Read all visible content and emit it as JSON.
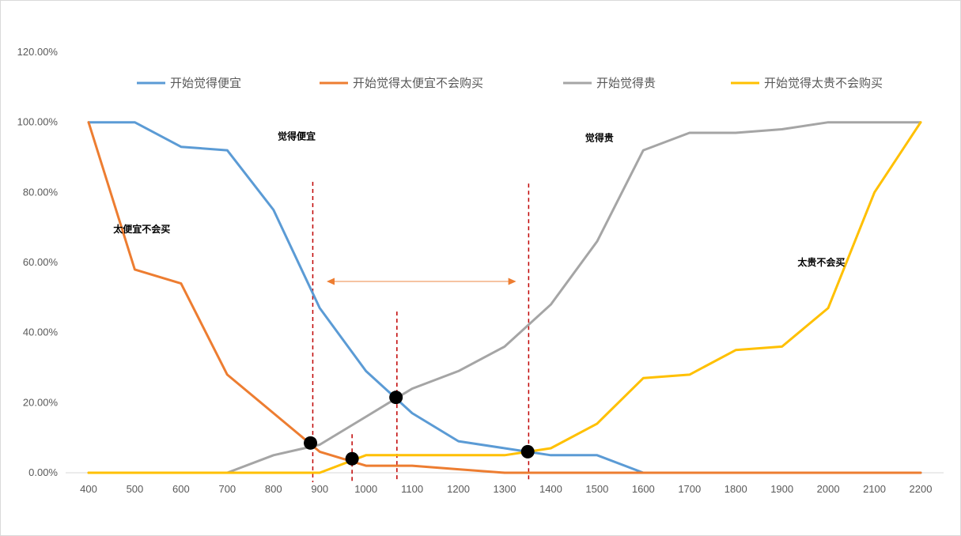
{
  "chart_data": {
    "type": "line",
    "x": [
      400,
      500,
      600,
      700,
      800,
      900,
      1000,
      1100,
      1200,
      1300,
      1400,
      1500,
      1600,
      1700,
      1800,
      1900,
      2000,
      2100,
      2200
    ],
    "x_tick_labels": [
      "400",
      "500",
      "600",
      "700",
      "800",
      "900",
      "1000",
      "1100",
      "1200",
      "1300",
      "1400",
      "1500",
      "1600",
      "1700",
      "1800",
      "1900",
      "2000",
      "2100",
      "2200"
    ],
    "ylim": [
      0,
      1.2
    ],
    "y_ticks": [
      0,
      0.2,
      0.4,
      0.6,
      0.8,
      1.0,
      1.2
    ],
    "y_tick_labels": [
      "0.00%",
      "20.00%",
      "40.00%",
      "60.00%",
      "80.00%",
      "100.00%",
      "120.00%"
    ],
    "grid": false,
    "legend_position": "top",
    "series": [
      {
        "name": "开始觉得便宜",
        "color": "#5B9BD5",
        "values": [
          1.0,
          1.0,
          0.93,
          0.92,
          0.75,
          0.47,
          0.29,
          0.17,
          0.09,
          0.07,
          0.05,
          0.05,
          0.0,
          0.0,
          0.0,
          0.0,
          0.0,
          0.0,
          0.0
        ]
      },
      {
        "name": "开始觉得太便宜不会购买",
        "color": "#ED7D31",
        "values": [
          1.0,
          0.58,
          0.54,
          0.28,
          0.17,
          0.06,
          0.02,
          0.02,
          0.01,
          0.0,
          0.0,
          0.0,
          0.0,
          0.0,
          0.0,
          0.0,
          0.0,
          0.0,
          0.0
        ]
      },
      {
        "name": "开始觉得贵",
        "color": "#A5A5A5",
        "values": [
          0.0,
          0.0,
          0.0,
          0.0,
          0.05,
          0.08,
          0.16,
          0.24,
          0.29,
          0.36,
          0.48,
          0.66,
          0.92,
          0.97,
          0.97,
          0.98,
          1.0,
          1.0,
          1.0
        ]
      },
      {
        "name": "开始觉得太贵不会购买",
        "color": "#FFC000",
        "values": [
          0.0,
          0.0,
          0.0,
          0.0,
          0.0,
          0.0,
          0.05,
          0.05,
          0.05,
          0.05,
          0.07,
          0.14,
          0.27,
          0.28,
          0.35,
          0.36,
          0.47,
          0.8,
          1.0
        ]
      }
    ],
    "annotations": [
      {
        "text": "觉得便宜",
        "x": 850,
        "y": 0.96
      },
      {
        "text": "觉得贵",
        "x": 1505,
        "y": 0.955
      },
      {
        "text": "太便宜不会买",
        "x": 515,
        "y": 0.695
      },
      {
        "text": "太贵不会买",
        "x": 1985,
        "y": 0.6
      }
    ],
    "intersection_points": [
      {
        "x": 880,
        "y": 0.085
      },
      {
        "x": 970,
        "y": 0.04
      },
      {
        "x": 1065,
        "y": 0.215
      },
      {
        "x": 1350,
        "y": 0.06
      }
    ],
    "reference_lines": [
      {
        "x": 885,
        "y_top": 0.83
      },
      {
        "x": 970,
        "y_top": 0.11
      },
      {
        "x": 1067,
        "y_top": 0.46
      },
      {
        "x": 1352,
        "y_top": 0.825
      }
    ],
    "range_arrow": {
      "x_from": 915,
      "x_to": 1325,
      "y": 0.546,
      "color": "#F4B183"
    }
  }
}
